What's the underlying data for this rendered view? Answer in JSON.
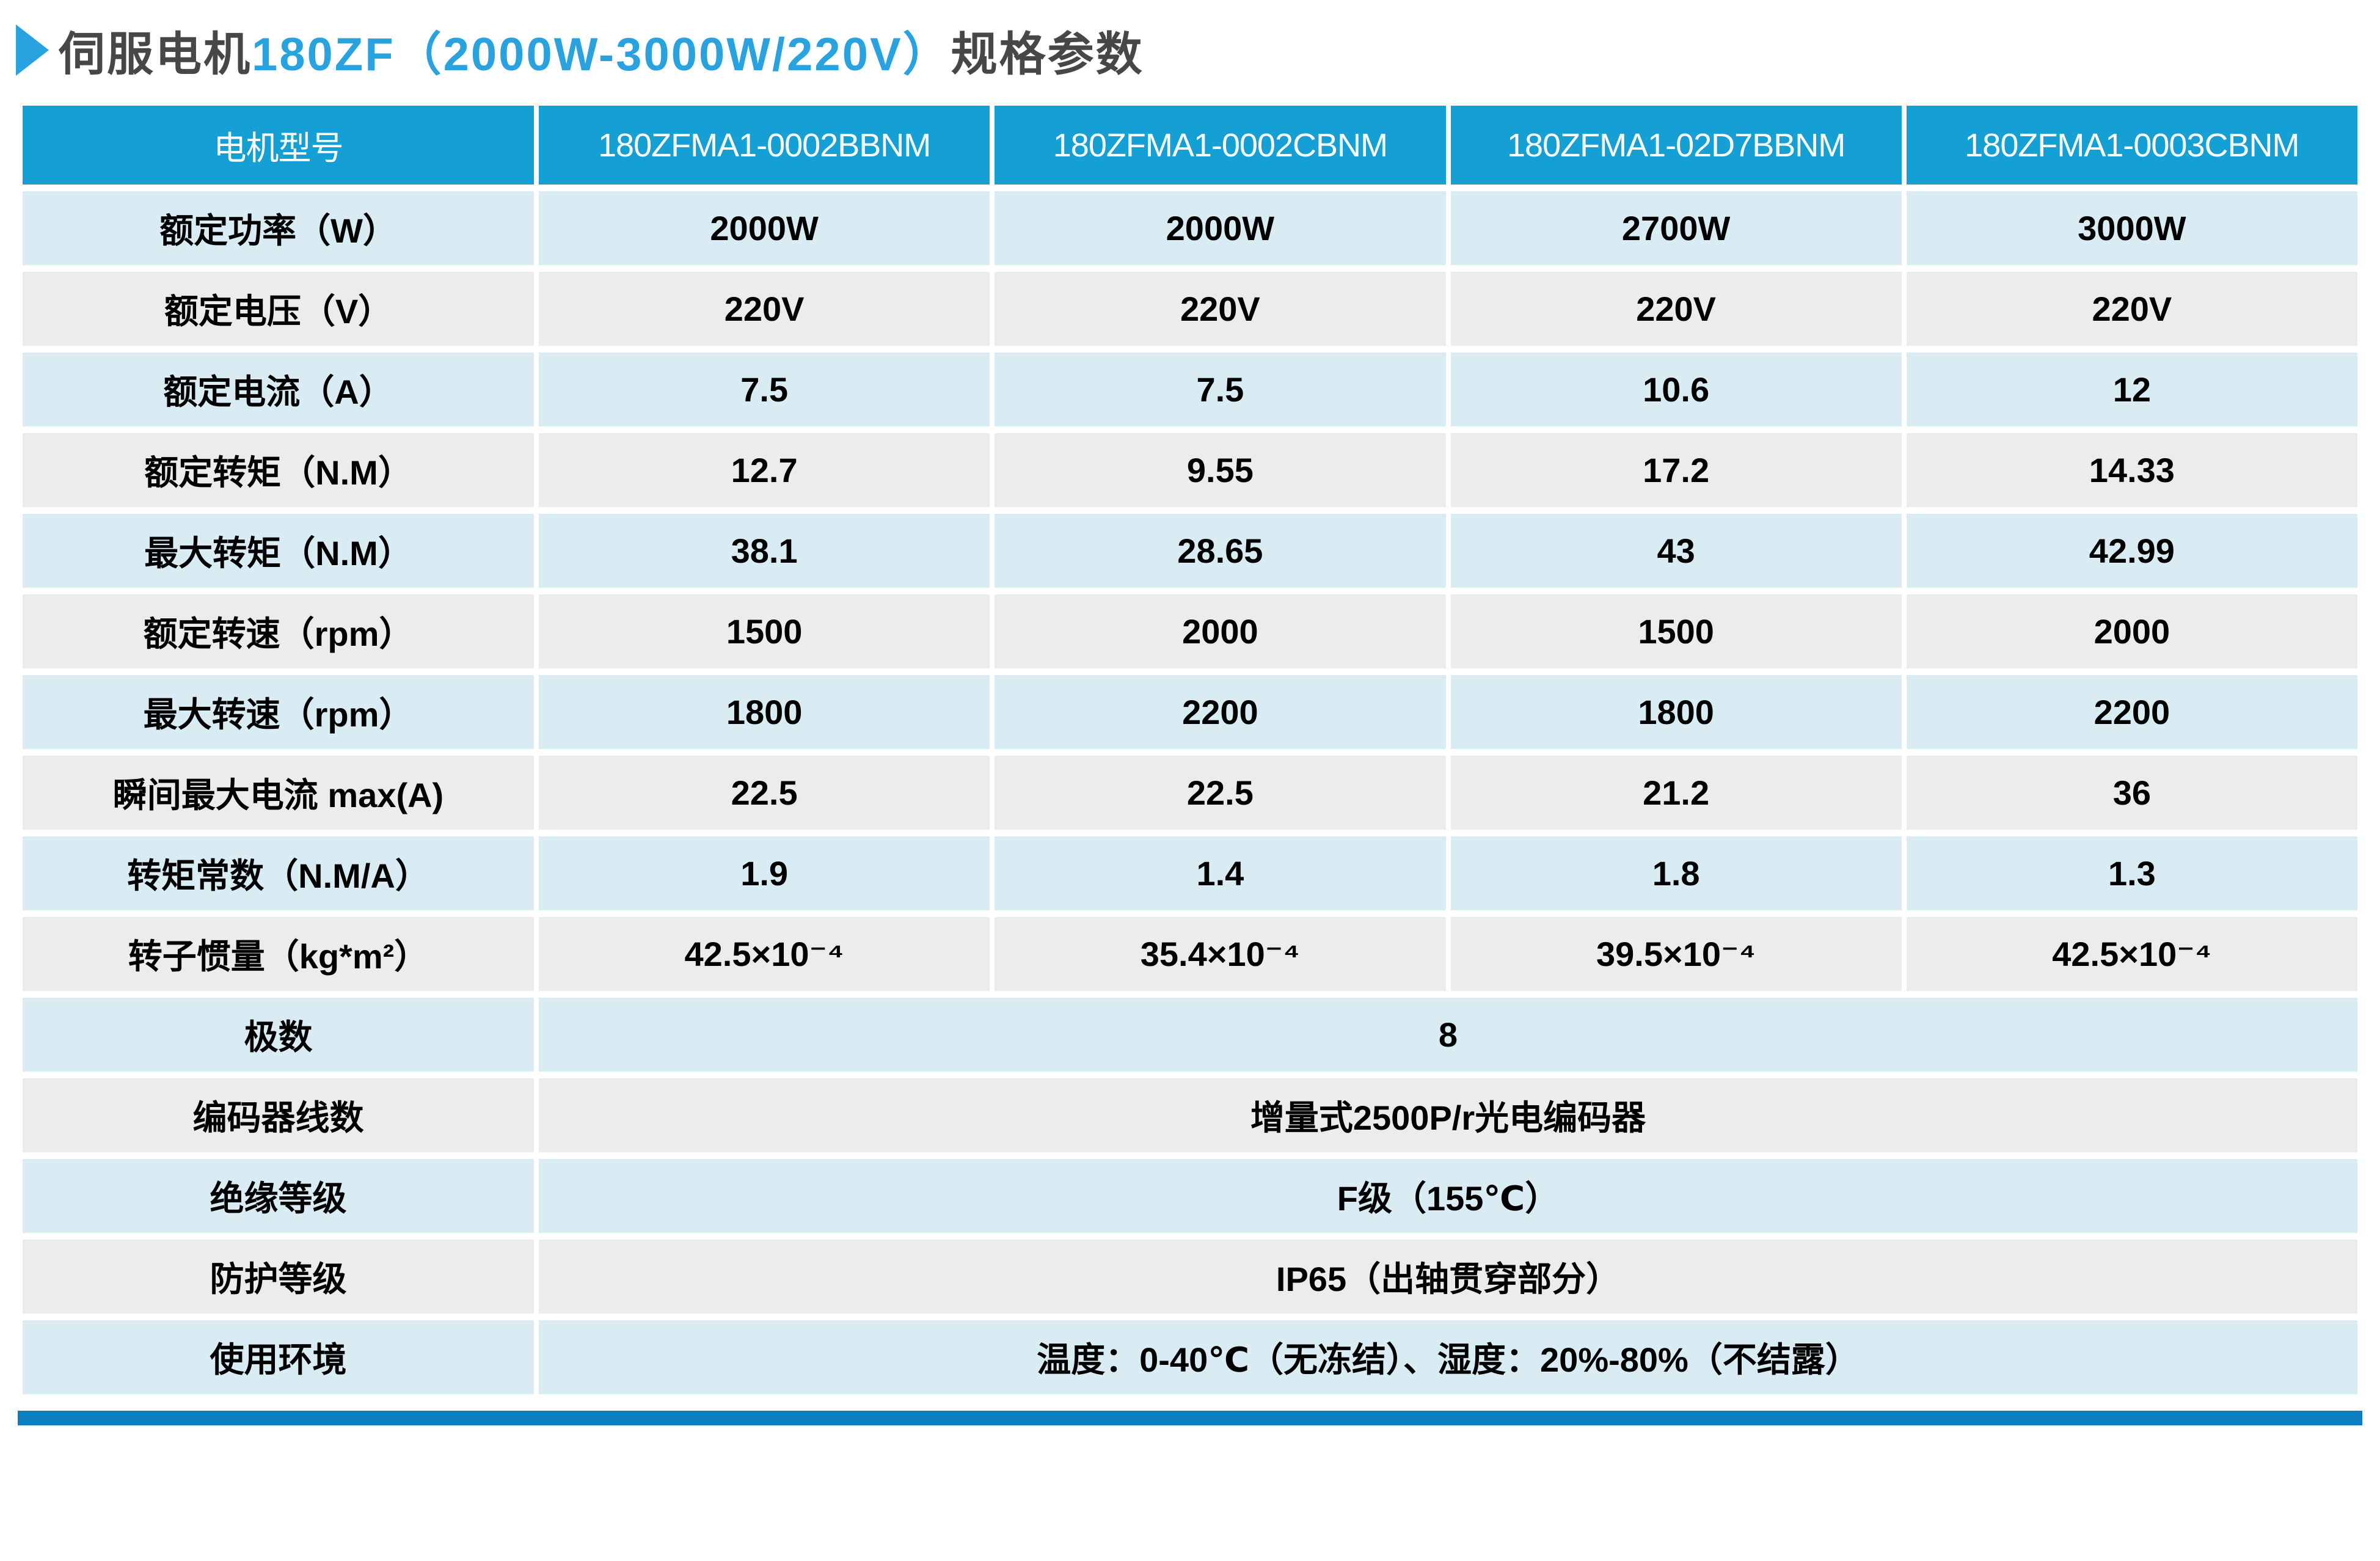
{
  "title": {
    "prefix": "伺服电机",
    "model": "180ZF（2000W-3000W/220V）",
    "suffix": "规格参数"
  },
  "table": {
    "header": [
      "电机型号",
      "180ZFMA1-0002BBNM",
      "180ZFMA1-0002CBNM",
      "180ZFMA1-02D7BBNM",
      "180ZFMA1-0003CBNM"
    ],
    "rows": [
      {
        "label": "额定功率（W）",
        "values": [
          "2000W",
          "2000W",
          "2700W",
          "3000W"
        ]
      },
      {
        "label": "额定电压（V）",
        "values": [
          "220V",
          "220V",
          "220V",
          "220V"
        ]
      },
      {
        "label": "额定电流（A）",
        "values": [
          "7.5",
          "7.5",
          "10.6",
          "12"
        ]
      },
      {
        "label": "额定转矩（N.M）",
        "values": [
          "12.7",
          "9.55",
          "17.2",
          "14.33"
        ]
      },
      {
        "label": "最大转矩（N.M）",
        "values": [
          "38.1",
          "28.65",
          "43",
          "42.99"
        ]
      },
      {
        "label": "额定转速（rpm）",
        "values": [
          "1500",
          "2000",
          "1500",
          "2000"
        ]
      },
      {
        "label": "最大转速（rpm）",
        "values": [
          "1800",
          "2200",
          "1800",
          "2200"
        ]
      },
      {
        "label": "瞬间最大电流 max(A)",
        "values": [
          "22.5",
          "22.5",
          "21.2",
          "36"
        ]
      },
      {
        "label": "转矩常数（N.M/A）",
        "values": [
          "1.9",
          "1.4",
          "1.8",
          "1.3"
        ]
      },
      {
        "label": "转子惯量（kg*m²）",
        "values": [
          "42.5×10⁻⁴",
          "35.4×10⁻⁴",
          "39.5×10⁻⁴",
          "42.5×10⁻⁴"
        ]
      }
    ],
    "span_rows": [
      {
        "label": "极数",
        "value": "8"
      },
      {
        "label": "编码器线数",
        "value": "增量式2500P/r光电编码器"
      },
      {
        "label": "绝缘等级",
        "value": "F级（155℃）"
      },
      {
        "label": "防护等级",
        "value": "IP65（出轴贯穿部分）"
      },
      {
        "label": "使用环境",
        "value": "温度：0-40℃（无冻结）、湿度：20%-80%（不结露）"
      }
    ]
  },
  "colors": {
    "header_blue": "#14a0d4",
    "row_blue": "#d9ecf3",
    "row_gray": "#ececec",
    "bottom_bar": "#0b7dc1",
    "title_accent": "#29a3e0",
    "title_text": "#474747",
    "cell_text": "#000000"
  }
}
